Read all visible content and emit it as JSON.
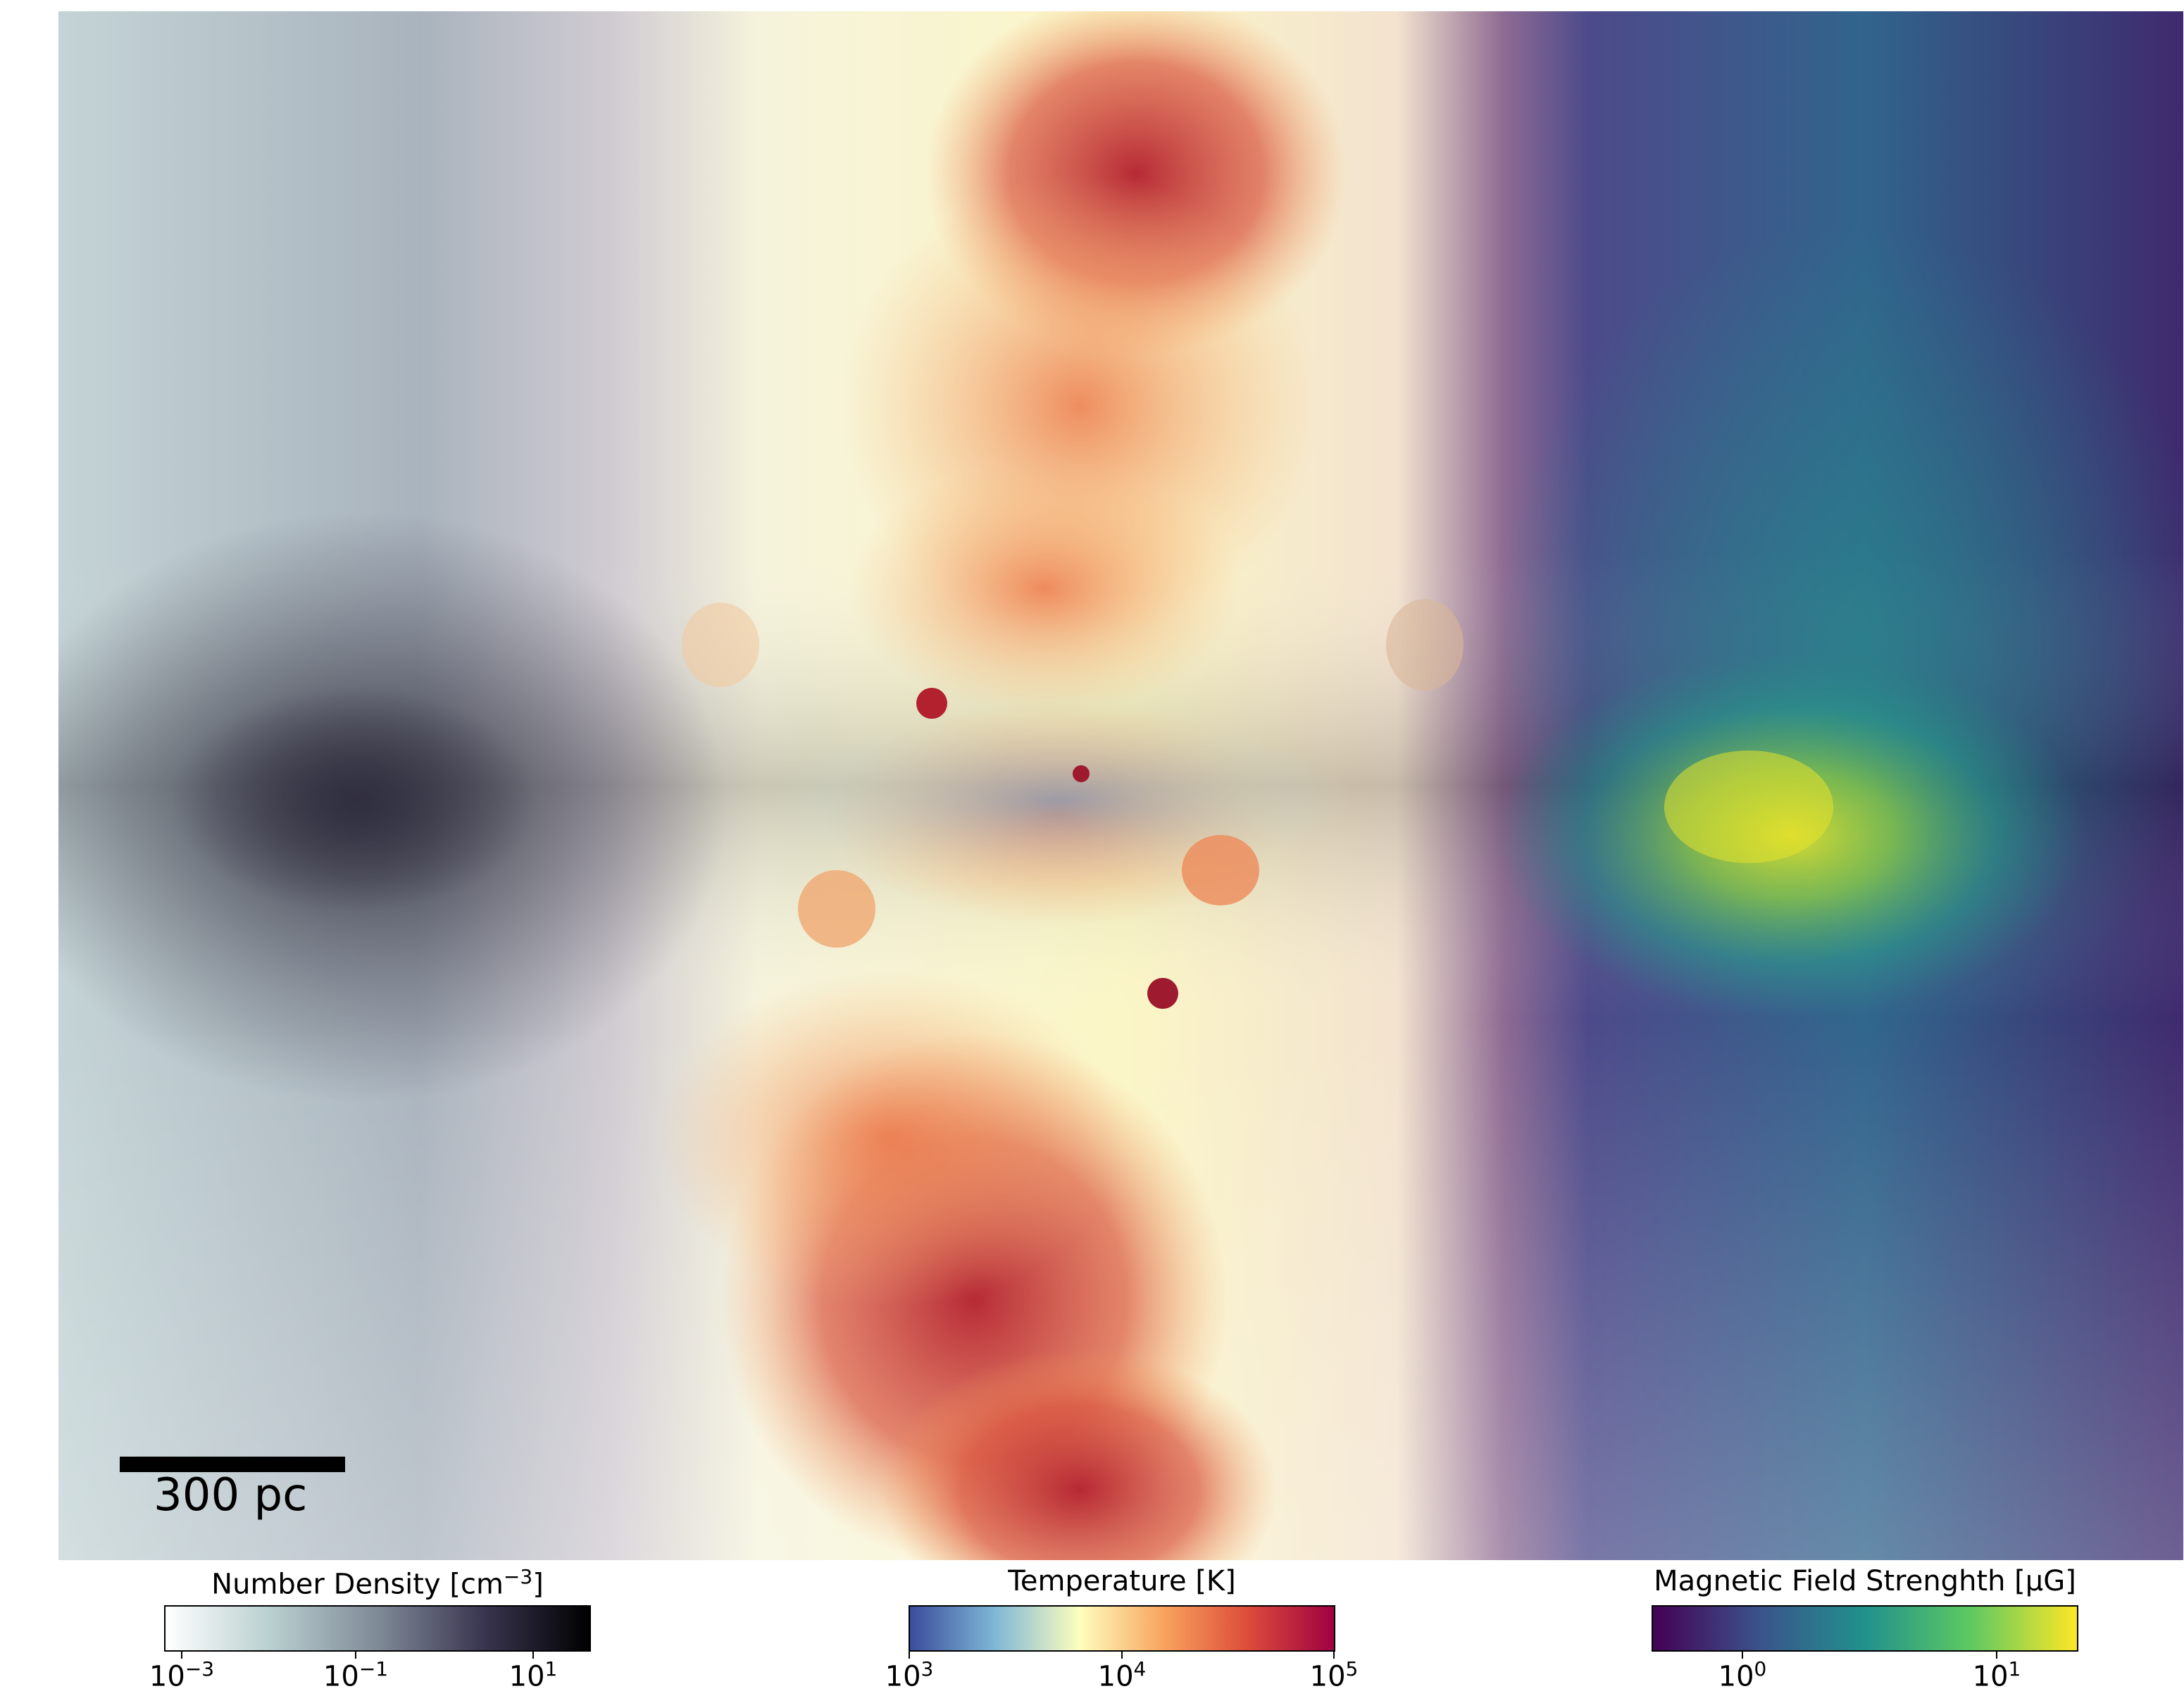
{
  "scale_bar": {
    "label": "300 pc"
  },
  "colorbars": [
    {
      "title": "Number Density [cm",
      "title_sup": "−3",
      "title_suffix": "]",
      "colors": [
        "#ffffff",
        "#b9cfcf",
        "#7f8a97",
        "#3a3550",
        "#000000"
      ],
      "ticks": [
        {
          "base": "10",
          "exp": "−3"
        },
        {
          "base": "10",
          "exp": "−1"
        },
        {
          "base": "10",
          "exp": "1"
        }
      ]
    },
    {
      "title": "Temperature [K]",
      "colors": [
        "#3b4c9b",
        "#7fb7d6",
        "#fefebe",
        "#f8a35e",
        "#dc4a3a",
        "#9e0142"
      ],
      "ticks": [
        {
          "base": "10",
          "exp": "3"
        },
        {
          "base": "10",
          "exp": "4"
        },
        {
          "base": "10",
          "exp": "5"
        }
      ]
    },
    {
      "title": "Magnetic Field Strenghth [μG]",
      "colors": [
        "#440154",
        "#3b528b",
        "#21918c",
        "#5ec962",
        "#fde725"
      ],
      "ticks": [
        {
          "base": "10",
          "exp": "0"
        },
        {
          "base": "10",
          "exp": "1"
        }
      ]
    }
  ],
  "image_colors": {
    "density_light": "#d6e3e4",
    "density_dark": "#2e2c3c",
    "temp_hot": "#b3202e",
    "temp_warm": "#f49a5a",
    "temp_mid": "#fbf7c1",
    "temp_cold": "#6aa0cf",
    "mag_low": "#3d2a6c",
    "mag_mid": "#2a8d8a",
    "mag_high": "#e3e22b"
  }
}
